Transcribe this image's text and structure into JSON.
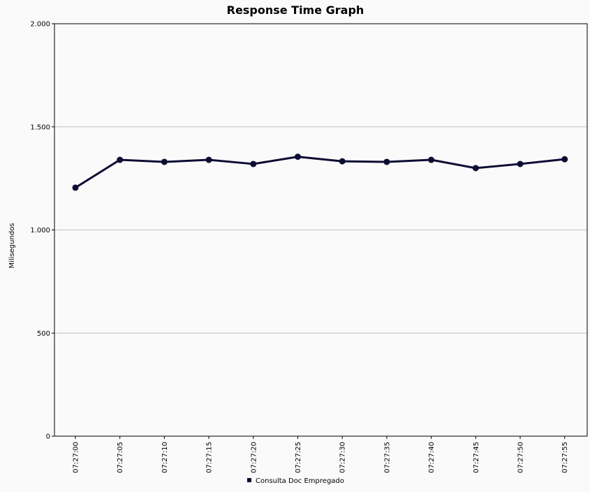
{
  "chart_data": {
    "type": "line",
    "title": "Response Time Graph",
    "xlabel": "",
    "ylabel": "Milisegundos",
    "categories": [
      "07:27:00",
      "07:27:05",
      "07:27:10",
      "07:27:15",
      "07:27:20",
      "07:27:25",
      "07:27:30",
      "07:27:35",
      "07:27:40",
      "07:27:45",
      "07:27:50",
      "07:27:55"
    ],
    "series": [
      {
        "name": "Consulta Doc Empregado",
        "values": [
          1205,
          1340,
          1330,
          1340,
          1320,
          1355,
          1333,
          1330,
          1340,
          1300,
          1320,
          1343
        ],
        "color": "#0d0c33"
      }
    ],
    "ylim": [
      0,
      2000
    ],
    "yticks": [
      0,
      500,
      1000,
      1500,
      2000
    ],
    "ytick_labels": [
      "0",
      "500",
      "1.000",
      "1.500",
      "2.000"
    ],
    "grid": true,
    "legend_position": "bottom"
  }
}
